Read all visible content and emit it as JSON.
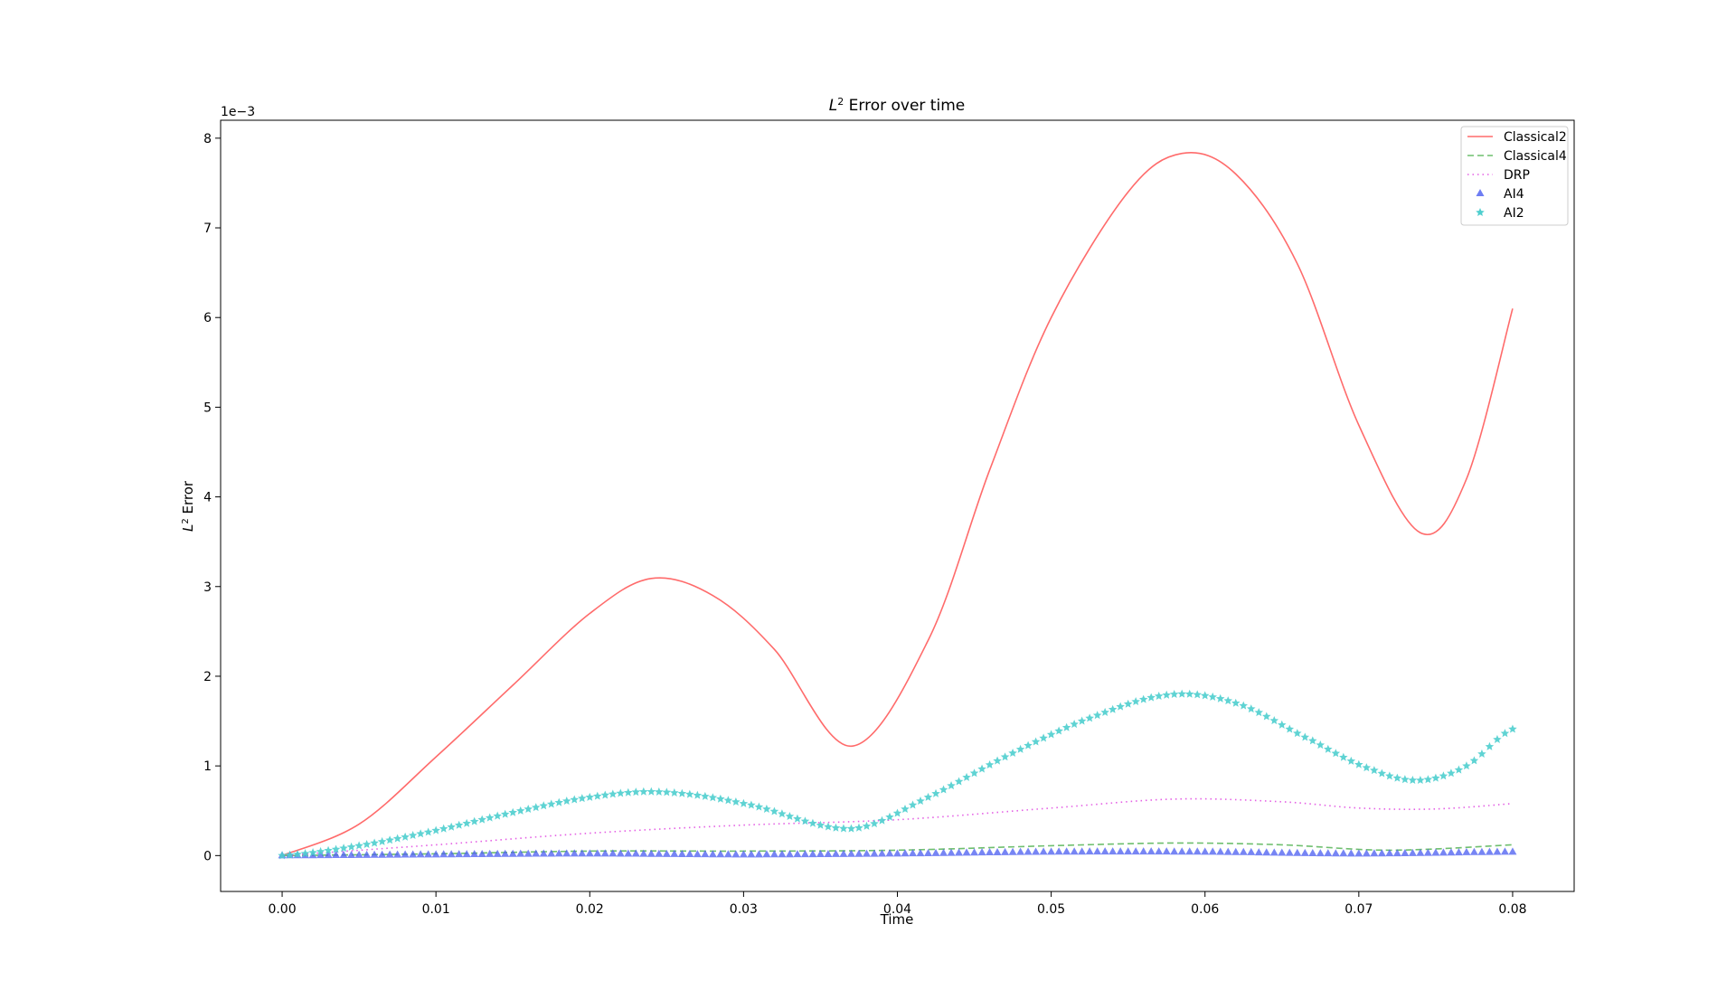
{
  "chart_data": {
    "type": "line",
    "title_prefix": "L",
    "title_sup": "2",
    "title_suffix": " Error over time",
    "xlabel": "Time",
    "ylabel_prefix": "L",
    "ylabel_sup": "2",
    "ylabel_suffix": " Error",
    "y_offset_text": "1e−3",
    "xlim": [
      -0.004,
      0.084
    ],
    "ylim": [
      -0.0004,
      0.0082
    ],
    "grid": false,
    "legend_position": "top-right",
    "x_ticks": [
      0.0,
      0.01,
      0.02,
      0.03,
      0.04,
      0.05,
      0.06,
      0.07,
      0.08
    ],
    "x_tick_labels": [
      "0.00",
      "0.01",
      "0.02",
      "0.03",
      "0.04",
      "0.05",
      "0.06",
      "0.07",
      "0.08"
    ],
    "y_ticks": [
      0,
      0.001,
      0.002,
      0.003,
      0.004,
      0.005,
      0.006,
      0.007,
      0.008
    ],
    "y_tick_labels": [
      "0",
      "1",
      "2",
      "3",
      "4",
      "5",
      "6",
      "7",
      "8"
    ],
    "series": [
      {
        "name": "Classical2",
        "style": "solid",
        "marker": "none",
        "color": "#ff6b6b",
        "x": [
          0.0,
          0.005,
          0.01,
          0.015,
          0.02,
          0.024,
          0.028,
          0.032,
          0.037,
          0.042,
          0.046,
          0.05,
          0.055,
          0.0585,
          0.062,
          0.066,
          0.07,
          0.074,
          0.077,
          0.08
        ],
        "y": [
          0.0,
          0.00035,
          0.0011,
          0.0019,
          0.0027,
          0.00309,
          0.0029,
          0.0023,
          0.00122,
          0.0024,
          0.0043,
          0.006,
          0.0074,
          0.00783,
          0.0076,
          0.0066,
          0.0048,
          0.0036,
          0.0042,
          0.0061
        ]
      },
      {
        "name": "Classical4",
        "style": "dashed",
        "marker": "none",
        "color": "#6fbf6f",
        "x": [
          0.0,
          0.01,
          0.02,
          0.03,
          0.04,
          0.05,
          0.058,
          0.065,
          0.072,
          0.08
        ],
        "y": [
          0.0,
          2e-05,
          5e-05,
          5e-05,
          6e-05,
          0.00011,
          0.00014,
          0.00012,
          6e-05,
          0.00012
        ]
      },
      {
        "name": "DRP",
        "style": "dotted",
        "marker": "none",
        "color": "#e45fe4",
        "x": [
          0.0,
          0.01,
          0.02,
          0.03,
          0.04,
          0.05,
          0.058,
          0.065,
          0.07,
          0.075,
          0.08
        ],
        "y": [
          0.0,
          0.00012,
          0.00025,
          0.00034,
          0.0004,
          0.00053,
          0.00063,
          0.0006,
          0.00053,
          0.00052,
          0.00058
        ]
      },
      {
        "name": "AI4",
        "style": "none",
        "marker": "triangle",
        "color": "#4a5cf0",
        "x": [
          0.0,
          0.01,
          0.02,
          0.03,
          0.04,
          0.05,
          0.06,
          0.07,
          0.08
        ],
        "y": [
          0.0,
          1e-05,
          2e-05,
          1e-05,
          2e-05,
          4e-05,
          4e-05,
          2e-05,
          4e-05
        ]
      },
      {
        "name": "AI2",
        "style": "none",
        "marker": "star",
        "color": "#4ecece",
        "x": [
          0.0,
          0.005,
          0.01,
          0.015,
          0.02,
          0.0245,
          0.03,
          0.037,
          0.042,
          0.047,
          0.052,
          0.0575,
          0.062,
          0.067,
          0.071,
          0.074,
          0.077,
          0.08
        ],
        "y": [
          0.0,
          0.00011,
          0.00028,
          0.00048,
          0.00065,
          0.00071,
          0.00058,
          0.0003,
          0.00065,
          0.0011,
          0.0015,
          0.00179,
          0.0017,
          0.00128,
          0.00095,
          0.00084,
          0.001,
          0.00141
        ]
      }
    ]
  }
}
